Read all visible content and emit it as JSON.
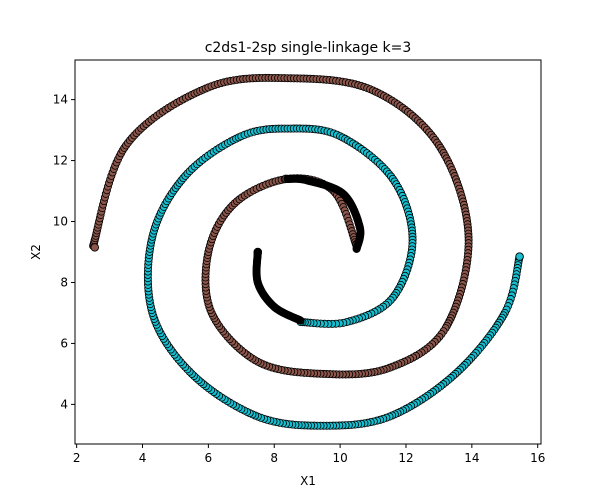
{
  "chart_data": {
    "type": "scatter",
    "title": "c2ds1-2sp single-linkage k=3",
    "xlabel": "X1",
    "ylabel": "X2",
    "xlim": [
      1.95,
      16.1
    ],
    "ylim": [
      2.7,
      15.3
    ],
    "xticks": [
      2,
      4,
      6,
      8,
      10,
      12,
      14,
      16
    ],
    "yticks": [
      4,
      6,
      8,
      10,
      12,
      14
    ],
    "grid": false,
    "legend": "none",
    "marker_edge_color": "#000000",
    "series": [
      {
        "cluster": 1,
        "color": "#8c564b",
        "description_points": "outer brown arm and inner brown arm of the spirals",
        "arms": [
          {
            "from": [
              2.5,
              9.2
            ],
            "via": [
              [
                3.5,
                12.5
              ],
              [
                6.0,
                14.4
              ],
              [
                8.5,
                14.7
              ],
              [
                11.0,
                14.3
              ],
              [
                13.0,
                12.5
              ],
              [
                13.9,
                9.5
              ],
              [
                13.2,
                6.5
              ],
              [
                11.5,
                5.2
              ],
              [
                9.5,
                5.0
              ],
              [
                7.5,
                5.4
              ],
              [
                6.1,
                7.0
              ],
              [
                6.0,
                9.0
              ],
              [
                6.8,
                10.6
              ],
              [
                8.4,
                11.4
              ],
              [
                9.8,
                11.0
              ],
              [
                10.5,
                9.2
              ]
            ]
          }
        ],
        "highlighted_points": [
          [
            2.55,
            9.15
          ],
          [
            8.35,
            11.4
          ],
          [
            10.5,
            9.25
          ]
        ]
      },
      {
        "cluster": 2,
        "color": "#17becf",
        "description_points": "middle cyan arm of the spirals",
        "arms": [
          {
            "from": [
              15.45,
              8.85
            ],
            "via": [
              [
                15.0,
                7.0
              ],
              [
                13.5,
                5.0
              ],
              [
                11.5,
                3.6
              ],
              [
                9.5,
                3.3
              ],
              [
                7.5,
                3.6
              ],
              [
                5.5,
                5.0
              ],
              [
                4.3,
                7.0
              ],
              [
                4.3,
                9.5
              ],
              [
                5.3,
                11.5
              ],
              [
                7.0,
                12.8
              ],
              [
                8.5,
                13.05
              ],
              [
                10.0,
                12.8
              ],
              [
                11.6,
                11.4
              ],
              [
                12.2,
                9.4
              ],
              [
                11.6,
                7.5
              ],
              [
                10.2,
                6.7
              ],
              [
                8.8,
                6.7
              ]
            ]
          }
        ],
        "highlighted_points": [
          [
            15.45,
            8.85
          ]
        ]
      },
      {
        "cluster": 3,
        "color": "#000000",
        "description_points": "dense black core segments",
        "arms": [
          {
            "from": [
              7.5,
              9.0
            ],
            "via": [
              [
                7.5,
                8.0
              ],
              [
                8.0,
                7.2
              ],
              [
                8.8,
                6.75
              ]
            ]
          },
          {
            "from": [
              10.5,
              9.1
            ],
            "via": [
              [
                10.6,
                9.8
              ],
              [
                10.1,
                10.9
              ],
              [
                9.0,
                11.35
              ],
              [
                8.4,
                11.4
              ]
            ]
          }
        ],
        "highlighted_points": [
          [
            7.5,
            9.0
          ]
        ]
      }
    ]
  }
}
